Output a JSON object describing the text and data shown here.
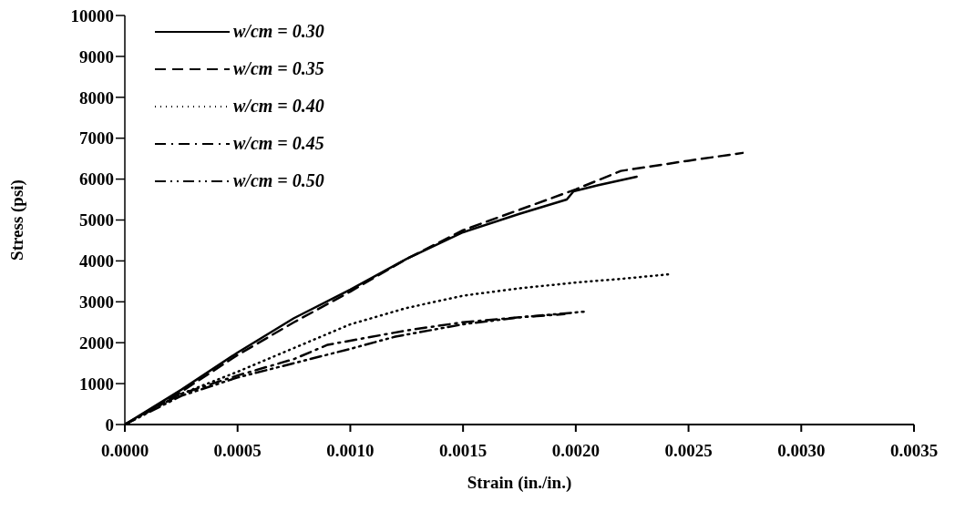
{
  "chart_data": {
    "type": "line",
    "xlabel": "Strain (in./in.)",
    "ylabel": "Stress (psi)",
    "xlim": [
      0,
      0.0035
    ],
    "xticks": [
      {
        "value": 0,
        "label": "0.0000"
      },
      {
        "value": 0.0005,
        "label": "0.0005"
      },
      {
        "value": 0.001,
        "label": "0.0010"
      },
      {
        "value": 0.0015,
        "label": "0.0015"
      },
      {
        "value": 0.002,
        "label": "0.0020"
      },
      {
        "value": 0.0025,
        "label": "0.0025"
      },
      {
        "value": 0.003,
        "label": "0.0030"
      },
      {
        "value": 0.0035,
        "label": "0.0035"
      }
    ],
    "ylim": [
      0,
      10000
    ],
    "yticks": [
      0,
      1000,
      2000,
      3000,
      4000,
      5000,
      6000,
      7000,
      8000,
      9000,
      10000
    ],
    "grid": false,
    "legend": "top left",
    "marker": "none",
    "series": [
      {
        "name": "w/cm = 0.30",
        "color": "#000000",
        "line_style": "solid",
        "x": [
          0,
          0.00025,
          0.0005,
          0.00075,
          0.001,
          0.00125,
          0.0015,
          0.00175,
          0.00196,
          0.00199,
          0.0021,
          0.00227
        ],
        "values": [
          0,
          850,
          1760,
          2600,
          3300,
          4050,
          4700,
          5150,
          5500,
          5700,
          5850,
          6060
        ]
      },
      {
        "name": "w/cm = 0.35",
        "color": "#000000",
        "line_style": "dashed",
        "x": [
          0,
          0.00025,
          0.0005,
          0.00075,
          0.001,
          0.00125,
          0.0015,
          0.00175,
          0.002,
          0.0022,
          0.0025,
          0.00274
        ],
        "values": [
          0,
          800,
          1700,
          2500,
          3250,
          4050,
          4750,
          5250,
          5750,
          6200,
          6450,
          6640
        ]
      },
      {
        "name": "w/cm = 0.40",
        "color": "#000000",
        "line_style": "dotted",
        "x": [
          0,
          0.00025,
          0.0005,
          0.00075,
          0.001,
          0.00125,
          0.0015,
          0.00175,
          0.002,
          0.0022,
          0.00241
        ],
        "values": [
          0,
          750,
          1290,
          1870,
          2450,
          2850,
          3150,
          3330,
          3470,
          3560,
          3670
        ]
      },
      {
        "name": "w/cm = 0.45",
        "color": "#000000",
        "line_style": "dashdot",
        "x": [
          0,
          0.00025,
          0.0005,
          0.00075,
          0.0009,
          0.001,
          0.00125,
          0.0015,
          0.00175,
          0.00195
        ],
        "values": [
          0,
          750,
          1200,
          1600,
          1950,
          2050,
          2300,
          2500,
          2620,
          2700
        ]
      },
      {
        "name": "w/cm = 0.50",
        "color": "#000000",
        "line_style": "dashdotdot",
        "x": [
          0,
          0.00025,
          0.0005,
          0.00075,
          0.001,
          0.0012,
          0.0015,
          0.00175,
          0.00204
        ],
        "values": [
          0,
          700,
          1150,
          1500,
          1850,
          2150,
          2450,
          2620,
          2760
        ]
      }
    ]
  }
}
